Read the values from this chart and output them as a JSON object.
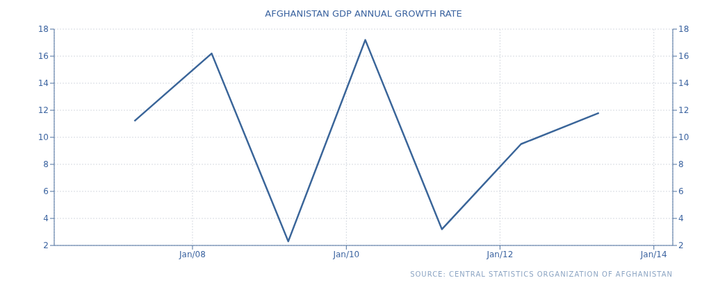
{
  "chart_data": {
    "type": "line",
    "title": "AFGHANISTAN GDP ANNUAL GROWTH RATE",
    "x": [
      "2007-03-31",
      "2008-04-01",
      "2009-03-31",
      "2010-04-01",
      "2011-03-31",
      "2012-04-10",
      "2013-04-15"
    ],
    "series": [
      {
        "color": "#3a6599",
        "values": [
          11.2,
          16.2,
          2.3,
          17.2,
          3.2,
          9.5,
          11.8
        ]
      }
    ],
    "xlim": [
      "2006-03-15",
      "2014-04-01"
    ],
    "xticks": [
      {
        "value": "2008-01-01",
        "label": "Jan/08"
      },
      {
        "value": "2010-01-01",
        "label": "Jan/10"
      },
      {
        "value": "2012-01-01",
        "label": "Jan/12"
      },
      {
        "value": "2014-01-01",
        "label": "Jan/14"
      }
    ],
    "ylim": [
      2,
      18
    ],
    "yticks": [
      2,
      4,
      6,
      8,
      10,
      12,
      14,
      16,
      18
    ],
    "y2lim": [
      2,
      18
    ],
    "y2ticks": [
      2,
      4,
      6,
      8,
      10,
      12,
      14,
      16,
      18
    ],
    "grid": true,
    "marker": "none",
    "line_style": "solid",
    "annotations": [
      "SOURCE: CENTRAL STATISTICS ORGANIZATION OF AFGHANISTAN"
    ]
  }
}
